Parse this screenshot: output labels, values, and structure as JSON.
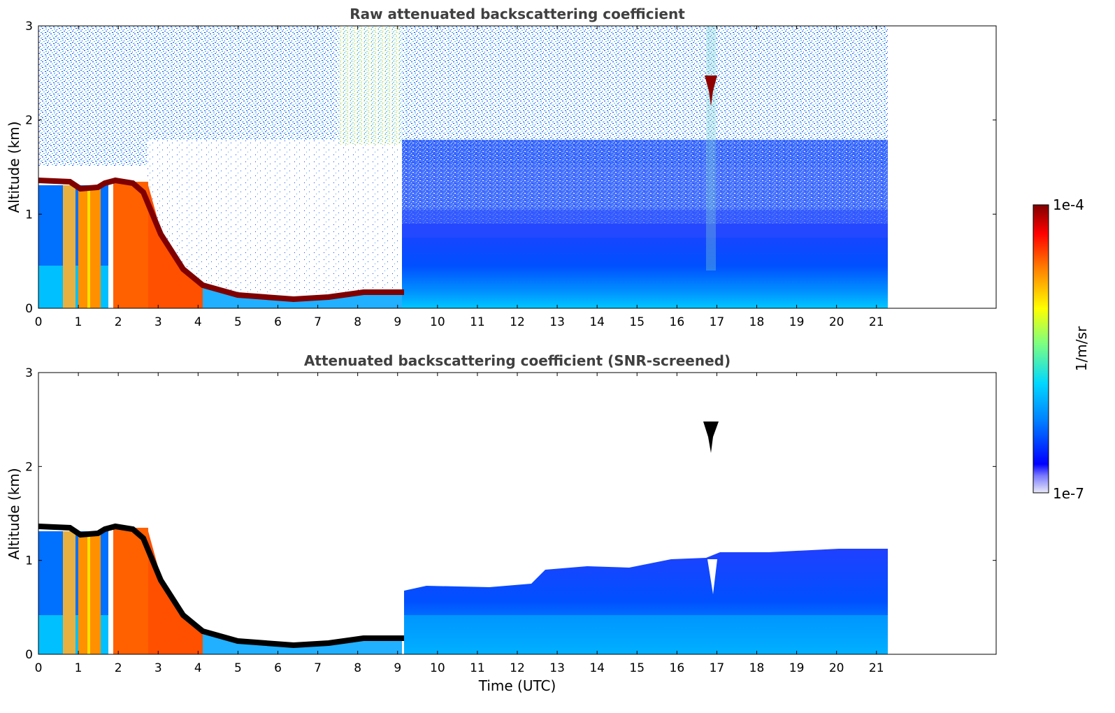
{
  "chart_data": [
    {
      "type": "heatmap",
      "title": "Raw attenuated backscattering coefficient",
      "xlabel": "",
      "ylabel": "Altitude (km)",
      "xlim": [
        0,
        24
      ],
      "ylim": [
        0,
        3
      ],
      "x_ticks": [
        "0",
        "1",
        "2",
        "3",
        "4",
        "5",
        "6",
        "7",
        "8",
        "9",
        "10",
        "11",
        "12",
        "13",
        "14",
        "15",
        "16",
        "17",
        "18",
        "19",
        "20",
        "21"
      ],
      "y_ticks": [
        "0",
        "1",
        "2",
        "3"
      ],
      "data_x_range": [
        0,
        21.3
      ],
      "features": [
        {
          "name": "cloud-top layer",
          "time_range": [
            0,
            2.7
          ],
          "altitude_km": 1.35,
          "value": "1e-4"
        },
        {
          "name": "descending boundary layer",
          "time": [
            2.7,
            3.2,
            3.6,
            4.0,
            5.0,
            6.0,
            7.0,
            8.0,
            9.0
          ],
          "altitude_km": [
            1.2,
            0.7,
            0.45,
            0.25,
            0.12,
            0.1,
            0.08,
            0.12,
            0.15
          ]
        },
        {
          "name": "elevated feature",
          "time": 16.85,
          "altitude_km": [
            2.1,
            2.5
          ]
        }
      ]
    },
    {
      "type": "heatmap",
      "title": "Attenuated backscattering coefficient (SNR-screened)",
      "xlabel": "Time (UTC)",
      "ylabel": "Altitude (km)",
      "xlim": [
        0,
        24
      ],
      "ylim": [
        0,
        3
      ],
      "x_ticks": [
        "0",
        "1",
        "2",
        "3",
        "4",
        "5",
        "6",
        "7",
        "8",
        "9",
        "10",
        "11",
        "12",
        "13",
        "14",
        "15",
        "16",
        "17",
        "18",
        "19",
        "20",
        "21"
      ],
      "y_ticks": [
        "0",
        "1",
        "2",
        "3"
      ],
      "data_x_range": [
        0,
        21.3
      ],
      "features": [
        {
          "name": "aerosol layer top",
          "time": [
            9.2,
            12.5,
            13.0,
            16.0,
            17.5,
            21.3
          ],
          "altitude_km": [
            0.7,
            0.75,
            0.9,
            0.95,
            1.05,
            1.1
          ]
        }
      ]
    }
  ],
  "colorbar": {
    "label": "1/m/sr",
    "max_label": "1e-4",
    "min_label": "1e-7",
    "colormap": [
      "#eaeaf7",
      "#0000ff",
      "#0080ff",
      "#00e0ff",
      "#7fff7f",
      "#ffff00",
      "#ff7f00",
      "#ff0000",
      "#800000"
    ]
  }
}
